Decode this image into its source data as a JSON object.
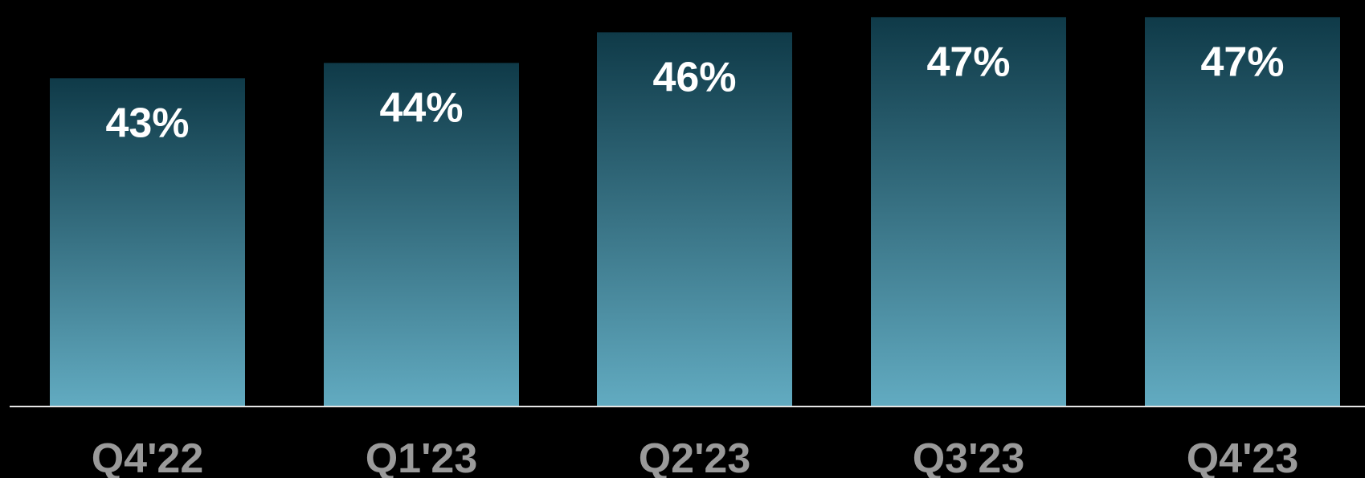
{
  "chart_data": {
    "type": "bar",
    "categories": [
      "Q4'22",
      "Q1'23",
      "Q2'23",
      "Q3'23",
      "Q4'23"
    ],
    "values": [
      43,
      44,
      46,
      47,
      47
    ],
    "value_labels": [
      "43%",
      "44%",
      "46%",
      "47%",
      "47%"
    ],
    "unit": "%",
    "ylim": [
      21.5,
      47.7
    ],
    "grid": false,
    "legend": "none",
    "colors": {
      "background": "#000000",
      "bar_top": "#0f3a48",
      "bar_bottom": "#62abc1",
      "baseline": "#e6e6e6",
      "value_label": "#ffffff",
      "category_label": "#9a9a9a"
    }
  }
}
